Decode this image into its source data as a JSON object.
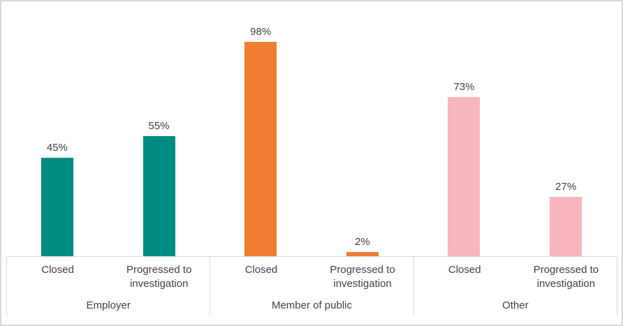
{
  "chart_data": {
    "type": "bar",
    "title": "",
    "xlabel": "",
    "ylabel": "",
    "ylim": [
      0,
      100
    ],
    "grid": false,
    "legend": "none",
    "value_suffix": "%",
    "axis_line_color": "#d9d9d9",
    "text_color": "#404040",
    "frame_color": "#d7d7d7",
    "categories_per_group": [
      "Closed",
      "Progressed to investigation"
    ],
    "groups": [
      {
        "label": "Employer",
        "color": "#008c82",
        "bars": [
          {
            "category": "Closed",
            "value": 45,
            "data_label": "45%"
          },
          {
            "category": "Progressed to investigation",
            "value": 55,
            "data_label": "55%"
          }
        ]
      },
      {
        "label": "Member of public",
        "color": "#ee7d30",
        "bars": [
          {
            "category": "Closed",
            "value": 98,
            "data_label": "98%"
          },
          {
            "category": "Progressed to investigation",
            "value": 2,
            "data_label": "2%"
          }
        ]
      },
      {
        "label": "Other",
        "color": "#f8b5bc",
        "bars": [
          {
            "category": "Closed",
            "value": 73,
            "data_label": "73%"
          },
          {
            "category": "Progressed to investigation",
            "value": 27,
            "data_label": "27%"
          }
        ]
      }
    ]
  }
}
